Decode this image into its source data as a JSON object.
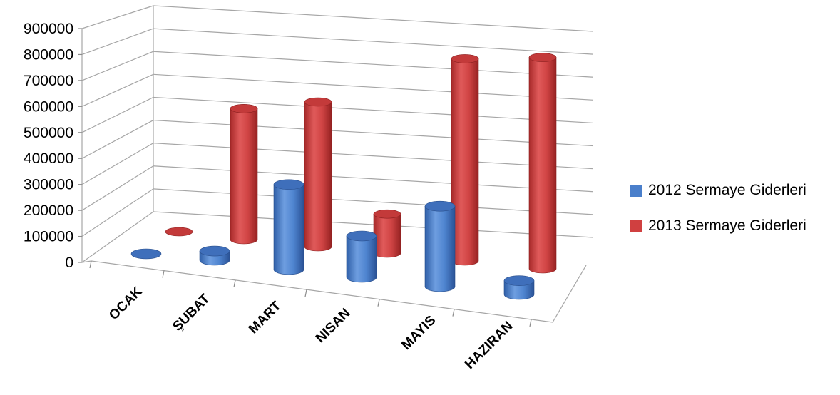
{
  "chart_data": {
    "type": "bar",
    "style": "3d-cylinder",
    "categories": [
      "OCAK",
      "ŞUBAT",
      "MART",
      "NISAN",
      "MAYIS",
      "HAZIRAN"
    ],
    "series": [
      {
        "name": "2012 Sermaye Giderleri",
        "color": "#4a7fcb",
        "values": [
          0,
          40000,
          370000,
          180000,
          350000,
          60000
        ]
      },
      {
        "name": "2013 Sermaye Giderleri",
        "color": "#d04040",
        "values": [
          0,
          570000,
          630000,
          170000,
          880000,
          920000
        ]
      }
    ],
    "y_ticks": [
      "0",
      "100000",
      "200000",
      "300000",
      "400000",
      "500000",
      "600000",
      "700000",
      "800000",
      "900000"
    ],
    "ylim": [
      0,
      900000
    ],
    "grid": true,
    "legend_position": "right"
  }
}
